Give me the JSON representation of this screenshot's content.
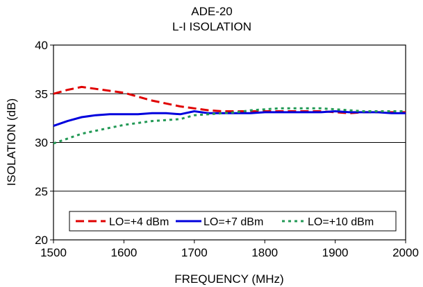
{
  "chart_data": {
    "type": "line",
    "title": "ADE-20",
    "subtitle": "L-I ISOLATION",
    "xlabel": "FREQUENCY (MHz)",
    "ylabel": "ISOLATION (dB)",
    "xlim": [
      1500,
      2000
    ],
    "ylim": [
      20,
      40
    ],
    "x_ticks": [
      "1500",
      "1600",
      "1700",
      "1800",
      "1900",
      "2000"
    ],
    "y_ticks": [
      "20",
      "25",
      "30",
      "35",
      "40"
    ],
    "grid": "horizontal",
    "legend_position": "bottom-inside",
    "series": [
      {
        "name": "LO=+4 dBm",
        "color": "#e00000",
        "style": "dashed",
        "points": [
          [
            1500,
            35.0
          ],
          [
            1520,
            35.4
          ],
          [
            1540,
            35.7
          ],
          [
            1560,
            35.5
          ],
          [
            1580,
            35.3
          ],
          [
            1600,
            35.1
          ],
          [
            1620,
            34.7
          ],
          [
            1640,
            34.3
          ],
          [
            1660,
            34.0
          ],
          [
            1680,
            33.7
          ],
          [
            1700,
            33.5
          ],
          [
            1720,
            33.3
          ],
          [
            1740,
            33.2
          ],
          [
            1760,
            33.2
          ],
          [
            1780,
            33.2
          ],
          [
            1800,
            33.2
          ],
          [
            1820,
            33.2
          ],
          [
            1840,
            33.2
          ],
          [
            1860,
            33.2
          ],
          [
            1880,
            33.2
          ],
          [
            1900,
            33.1
          ],
          [
            1920,
            33.0
          ],
          [
            1940,
            33.1
          ],
          [
            1960,
            33.1
          ],
          [
            1980,
            33.1
          ],
          [
            2000,
            33.1
          ]
        ]
      },
      {
        "name": "LO=+7 dBm",
        "color": "#0000dd",
        "style": "solid",
        "points": [
          [
            1500,
            31.7
          ],
          [
            1520,
            32.2
          ],
          [
            1540,
            32.6
          ],
          [
            1560,
            32.8
          ],
          [
            1580,
            32.9
          ],
          [
            1600,
            32.9
          ],
          [
            1620,
            32.9
          ],
          [
            1640,
            33.0
          ],
          [
            1660,
            33.0
          ],
          [
            1680,
            32.9
          ],
          [
            1700,
            33.2
          ],
          [
            1720,
            33.0
          ],
          [
            1740,
            33.0
          ],
          [
            1760,
            33.0
          ],
          [
            1780,
            33.0
          ],
          [
            1800,
            33.1
          ],
          [
            1820,
            33.1
          ],
          [
            1840,
            33.1
          ],
          [
            1860,
            33.1
          ],
          [
            1880,
            33.1
          ],
          [
            1900,
            33.2
          ],
          [
            1920,
            33.1
          ],
          [
            1940,
            33.1
          ],
          [
            1960,
            33.1
          ],
          [
            1980,
            33.0
          ],
          [
            2000,
            33.0
          ]
        ]
      },
      {
        "name": "LO=+10 dBm",
        "color": "#229955",
        "style": "dotted",
        "points": [
          [
            1500,
            29.9
          ],
          [
            1520,
            30.4
          ],
          [
            1540,
            30.9
          ],
          [
            1560,
            31.2
          ],
          [
            1580,
            31.5
          ],
          [
            1600,
            31.8
          ],
          [
            1620,
            32.0
          ],
          [
            1640,
            32.2
          ],
          [
            1660,
            32.3
          ],
          [
            1680,
            32.4
          ],
          [
            1700,
            32.8
          ],
          [
            1720,
            32.9
          ],
          [
            1740,
            33.0
          ],
          [
            1760,
            33.1
          ],
          [
            1780,
            33.3
          ],
          [
            1800,
            33.4
          ],
          [
            1820,
            33.5
          ],
          [
            1840,
            33.5
          ],
          [
            1860,
            33.5
          ],
          [
            1880,
            33.5
          ],
          [
            1900,
            33.4
          ],
          [
            1920,
            33.3
          ],
          [
            1940,
            33.2
          ],
          [
            1960,
            33.2
          ],
          [
            1980,
            33.2
          ],
          [
            2000,
            33.2
          ]
        ]
      }
    ]
  }
}
